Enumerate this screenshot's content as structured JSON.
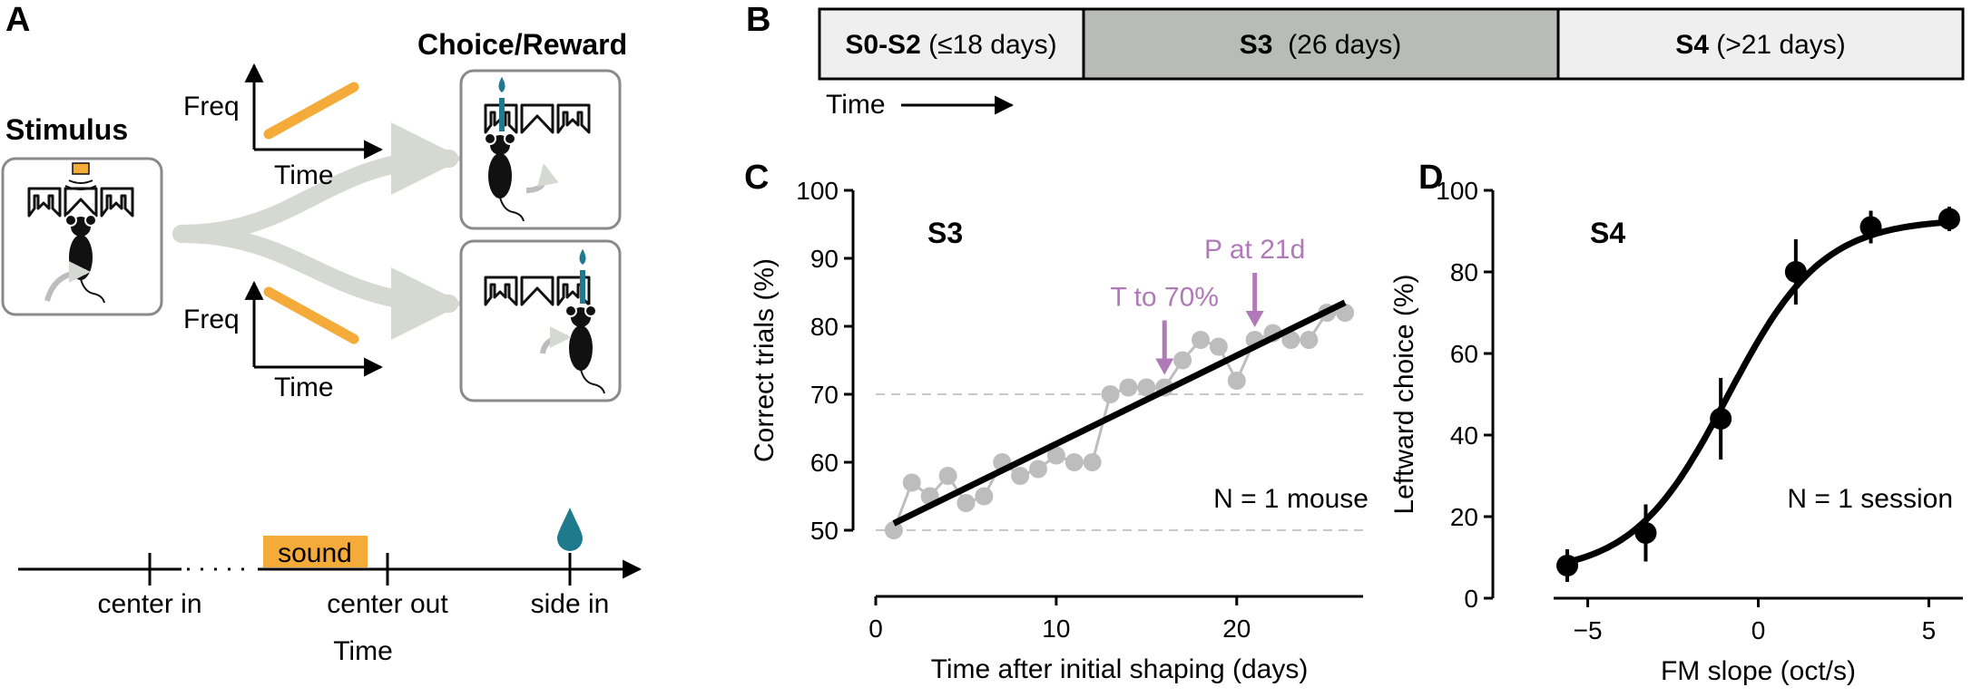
{
  "panels": {
    "a": "A",
    "b": "B",
    "c": "C",
    "d": "D"
  },
  "panel_a": {
    "stimulus": "Stimulus",
    "choice_reward": "Choice/Reward",
    "freq": "Freq",
    "time": "Time",
    "sound": "sound",
    "timeline_events": [
      "center in",
      "center out",
      "side in"
    ],
    "timeline_title": "Time",
    "colors": {
      "sweep": "#f5ab3a",
      "water": "#1e7a8c",
      "arrow": "#d6d8d2",
      "box": "#8a8a8a"
    }
  },
  "panel_b": {
    "stages": [
      {
        "bold": "S0-S2",
        "rest": " (≤18 days)",
        "fill": "#efefef"
      },
      {
        "bold": "S3",
        "rest": "  (26 days)",
        "fill": "#b9bbb6"
      },
      {
        "bold": "S4",
        "rest": " (>21 days)",
        "fill": "#efefef"
      }
    ],
    "time_label": "Time"
  },
  "chart_data": [
    {
      "type": "line",
      "title": "S3",
      "xlabel": "Time after initial shaping (days)",
      "ylabel": "Correct trials (%)",
      "xlim": [
        0,
        27
      ],
      "ylim": [
        50,
        100
      ],
      "xticks": [
        0,
        10,
        20
      ],
      "yticks": [
        50,
        60,
        70,
        80,
        90,
        100
      ],
      "reference_lines": [
        50,
        70
      ],
      "series": [
        {
          "x": [
            1,
            2,
            3,
            4,
            5,
            6,
            7,
            8,
            9,
            10,
            11,
            12,
            13,
            14,
            15,
            16,
            17,
            18,
            19,
            20,
            21,
            22,
            23,
            24,
            25,
            26
          ],
          "y": [
            50,
            57,
            55,
            58,
            54,
            55,
            60,
            58,
            59,
            61,
            60,
            60,
            70,
            71,
            71,
            71,
            75,
            78,
            77,
            72,
            78,
            79,
            78,
            78,
            82,
            82
          ],
          "color": "#bdbdbd"
        }
      ],
      "fit": {
        "x": [
          1,
          26
        ],
        "y": [
          51,
          83.5
        ],
        "color": "#000000"
      },
      "annotations": [
        {
          "text": "T to 70%",
          "x": 16,
          "y": 71,
          "color": "#b07ab8"
        },
        {
          "text": "P at 21d",
          "x": 21,
          "y": 78,
          "color": "#b07ab8"
        }
      ],
      "note": "N = 1 mouse",
      "grid": false
    },
    {
      "type": "scatter",
      "title": "S4",
      "xlabel": "FM slope (oct/s)",
      "ylabel": "Leftward choice (%)",
      "xlim": [
        -6,
        6
      ],
      "ylim": [
        0,
        100
      ],
      "xticks": [
        -5,
        0,
        5
      ],
      "yticks": [
        0,
        20,
        40,
        60,
        80,
        100
      ],
      "points": {
        "x": [
          -5.6,
          -3.3,
          -1.1,
          1.1,
          3.3,
          5.6
        ],
        "y": [
          8,
          16,
          44,
          80,
          91,
          93
        ],
        "err": [
          4,
          7,
          10,
          8,
          4,
          3
        ]
      },
      "fit": {
        "type": "logistic",
        "lower": 6,
        "upper": 93,
        "x0": -0.9,
        "slope": 0.72
      },
      "note": "N = 1 session",
      "grid": false
    }
  ]
}
